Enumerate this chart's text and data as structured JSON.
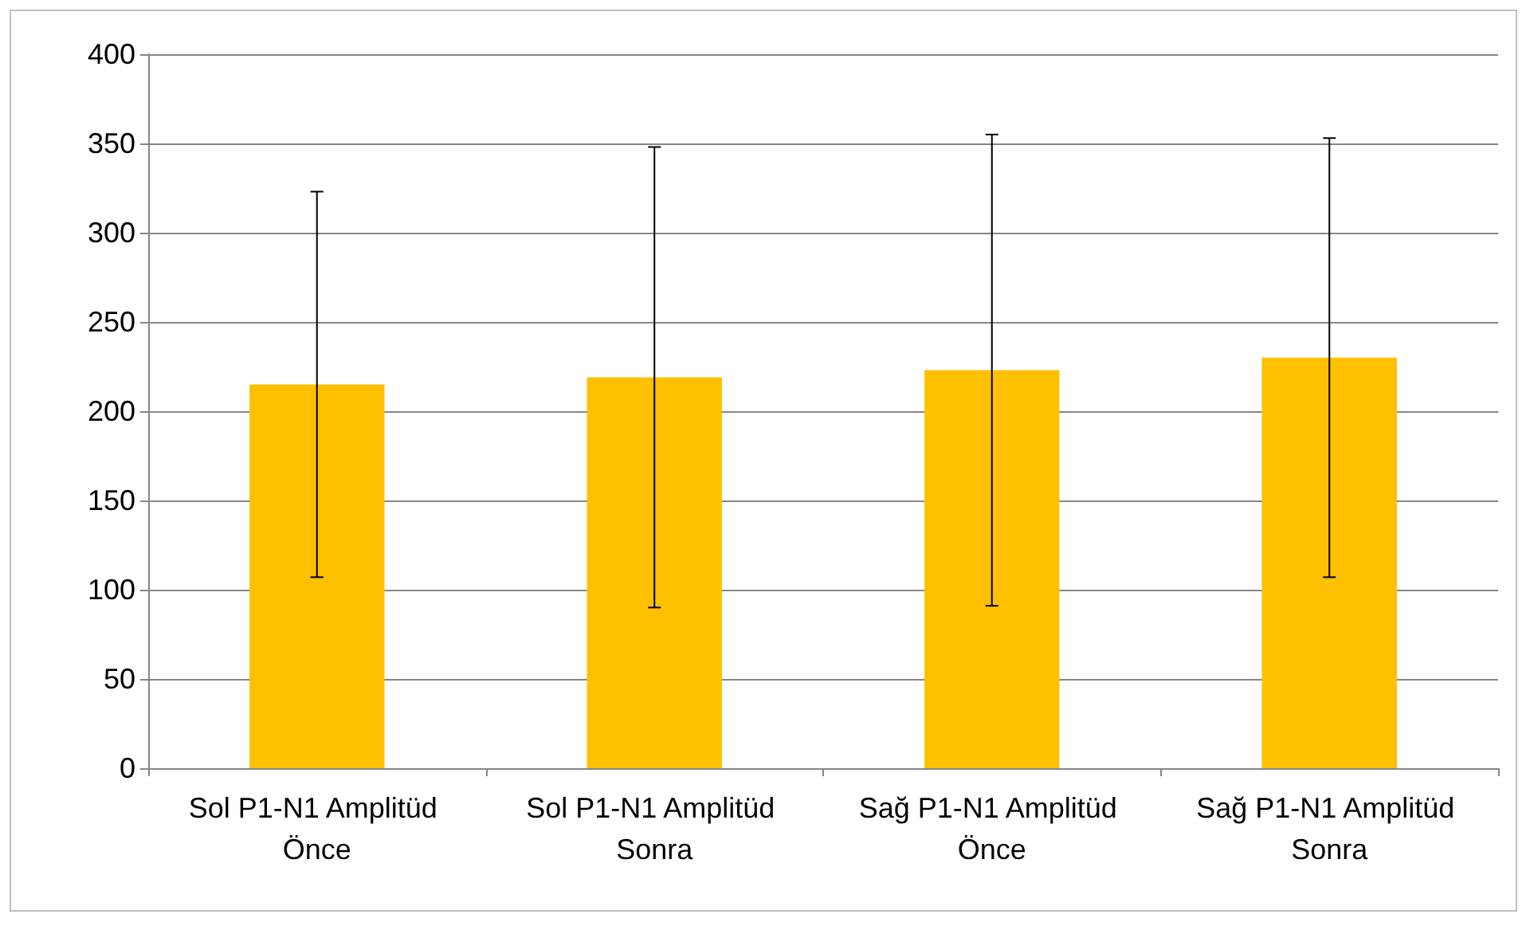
{
  "chart_data": {
    "type": "bar",
    "categories": [
      "Sol P1-N1 Amplitüd Önce",
      "Sol P1-N1 Amplitüd Sonra",
      "Sağ P1-N1 Amplitüd Önce",
      "Sağ P1-N1 Amplitüd Sonra"
    ],
    "values": [
      215,
      219,
      223,
      230
    ],
    "errors": [
      108,
      129,
      132,
      123
    ],
    "color": "#ffc000",
    "ylim": [
      0,
      400
    ],
    "yticks": [
      0,
      50,
      100,
      150,
      200,
      250,
      300,
      350,
      400
    ],
    "grid": "y"
  }
}
